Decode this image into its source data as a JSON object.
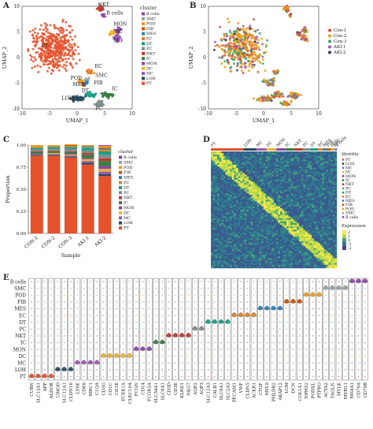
{
  "panels": {
    "a": "A",
    "b": "B",
    "c": "C",
    "d": "D",
    "e": "E"
  },
  "colors": {
    "PT": "#e5522b",
    "LOH": "#274b5e",
    "MC": "#9b59b6",
    "DC": "#f0b429",
    "MON": "#8e44ad",
    "IC": "#3a7d44",
    "NKT": "#c0392b",
    "PC": "#7f8c8d",
    "DT": "#16a085",
    "EC": "#e67e22",
    "MES": "#2980b9",
    "FIB": "#d35400",
    "POD": "#f39c12",
    "SMC": "#95a5a6",
    "B cells": "#8e44ad",
    "Con-1": "#e74c3c",
    "Con-2": "#f39c12",
    "Con-3": "#27ae60",
    "AKI-1": "#9b59b6",
    "AKI-2": "#2c3e50"
  },
  "umap_a": {
    "xlabel": "UMAP_1",
    "ylabel": "UMAP_2",
    "xticks": [
      "-10",
      "-5",
      "0",
      "5",
      "10"
    ],
    "yticks": [
      "10",
      "5",
      "0",
      "-5",
      "-10"
    ],
    "legend_title": "cluster",
    "legend": [
      "B cells",
      "SMC",
      "POD",
      "FIB",
      "MES",
      "EC",
      "DT",
      "PC",
      "NKT",
      "IC",
      "MON",
      "DC",
      "MC",
      "LOH",
      "PT"
    ],
    "cluster_labels": [
      "NKT",
      "B cells",
      "MON",
      "DC",
      "MC",
      "PT",
      "EC",
      "SMC",
      "POD",
      "FIB",
      "MES",
      "DT",
      "IC",
      "LOH",
      "PC"
    ]
  },
  "umap_b": {
    "xlabel": "UMAP_1",
    "ylabel": "UMAP_2",
    "xticks": [
      "-10",
      "-5",
      "0",
      "5",
      "10"
    ],
    "yticks": [
      "10",
      "5",
      "0",
      "-5",
      "-10"
    ],
    "legend": [
      "Con-1",
      "Con-2",
      "Con-3",
      "AKI-1",
      "AKI-2"
    ]
  },
  "chart_data": {
    "type": "bar",
    "title": "",
    "xlabel": "Sample",
    "ylabel": "Proportion",
    "ylim": [
      0,
      1
    ],
    "yticks": [
      "0.00",
      "0.25",
      "0.50",
      "0.75",
      "1.00"
    ],
    "categories": [
      "CON-1",
      "CON-2",
      "CON-3",
      "AKI-1",
      "AKI-2"
    ],
    "legend_title": "cluster",
    "legend": [
      "B cells",
      "SMC",
      "POD",
      "FIB",
      "MES",
      "EC",
      "DT",
      "PC",
      "NKT",
      "IC",
      "MON",
      "DC",
      "MC",
      "LOH",
      "PT"
    ],
    "series": [
      {
        "name": "PT",
        "values": [
          0.88,
          0.88,
          0.86,
          0.78,
          0.65
        ]
      },
      {
        "name": "LOH",
        "values": [
          0.01,
          0.01,
          0.01,
          0.02,
          0.02
        ]
      },
      {
        "name": "MC",
        "values": [
          0.01,
          0.01,
          0.01,
          0.02,
          0.03
        ]
      },
      {
        "name": "DC",
        "values": [
          0.0,
          0.01,
          0.01,
          0.02,
          0.03
        ]
      },
      {
        "name": "MON",
        "values": [
          0.0,
          0.0,
          0.01,
          0.01,
          0.03
        ]
      },
      {
        "name": "IC",
        "values": [
          0.02,
          0.02,
          0.02,
          0.04,
          0.06
        ]
      },
      {
        "name": "NKT",
        "values": [
          0.01,
          0.01,
          0.01,
          0.02,
          0.03
        ]
      },
      {
        "name": "PC",
        "values": [
          0.02,
          0.02,
          0.03,
          0.03,
          0.04
        ]
      },
      {
        "name": "DT",
        "values": [
          0.02,
          0.02,
          0.02,
          0.03,
          0.04
        ]
      },
      {
        "name": "EC",
        "values": [
          0.01,
          0.01,
          0.01,
          0.01,
          0.02
        ]
      },
      {
        "name": "MES",
        "values": [
          0.0,
          0.0,
          0.0,
          0.01,
          0.01
        ]
      },
      {
        "name": "FIB",
        "values": [
          0.0,
          0.0,
          0.01,
          0.0,
          0.01
        ]
      },
      {
        "name": "POD",
        "values": [
          0.02,
          0.01,
          0.01,
          0.01,
          0.02
        ]
      },
      {
        "name": "SMC",
        "values": [
          0.0,
          0.0,
          0.0,
          0.0,
          0.0
        ]
      },
      {
        "name": "B cells",
        "values": [
          0.0,
          0.0,
          0.0,
          0.0,
          0.01
        ]
      }
    ]
  },
  "heatmap": {
    "top_labels": [
      "PT",
      "LOH",
      "MC",
      "DC",
      "MON",
      "IC",
      "NKT",
      "PC",
      "DT",
      "EC",
      "MES",
      "FIB",
      "POD",
      "SMC",
      "B cells"
    ],
    "identity_title": "Identity",
    "identity": [
      "PT",
      "LOH",
      "MC",
      "DC",
      "MON",
      "IC",
      "NKT",
      "PC",
      "DT",
      "EC",
      "MES",
      "FIB",
      "POD",
      "SMC",
      "B cells"
    ],
    "expr_title": "Expression",
    "expr_ticks": [
      "2",
      "1",
      "0",
      "-1",
      "-2"
    ]
  },
  "violin": {
    "rows": [
      "B cells",
      "SMC",
      "POD",
      "FIB",
      "MES",
      "EC",
      "DT",
      "PC",
      "NKT",
      "IC",
      "MON",
      "DC",
      "MC",
      "LOH",
      "PT"
    ],
    "genes": [
      "CUBN",
      "SLC13A1",
      "APP",
      "ALDOB",
      "UMOD",
      "SLC12A1",
      "CLDN16",
      "LY6E",
      "CD68",
      "MRC1",
      "C1QA",
      "CD3G",
      "CD1C",
      "CD1E",
      "FCER1A",
      "CLEC10A",
      "FCGN",
      "CD14",
      "FCGR3A",
      "SLC34A1",
      "SLC8A1",
      "CD3D",
      "CD3E",
      "KLRD1",
      "NKG7",
      "AQP2",
      "AQP3",
      "SLC12A3",
      "CALB1",
      "SLC8A1",
      "SLC2A3",
      "PECAM1",
      "VWF",
      "CLDN5",
      "ACKR1",
      "CTGF",
      "MYL9",
      "PHLDB2",
      "AKAP12",
      "LUM",
      "DCN",
      "COL1A1",
      "NPHS2",
      "PODXL",
      "PTPRO",
      "ACTA2",
      "TAGLN",
      "MYLK",
      "MYH11",
      "MS4A1",
      "CD79A",
      "CD79B"
    ]
  }
}
